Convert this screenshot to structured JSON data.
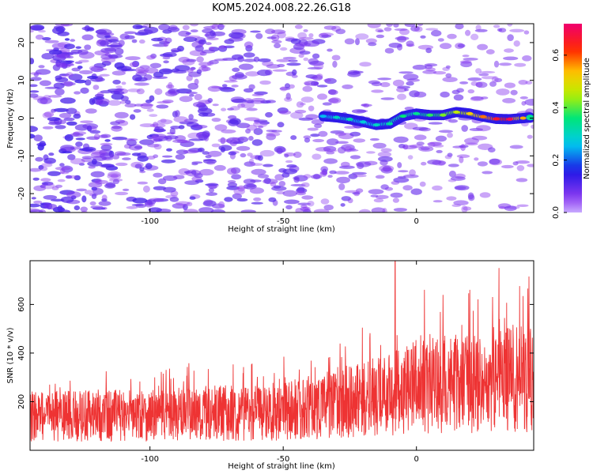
{
  "figure": {
    "title": "KOM5.2024.008.22.26.G18"
  },
  "chart_data": [
    {
      "type": "heatmap",
      "title": "KOM5.2024.008.22.26.G18",
      "xlabel": "Height of straight line (km)",
      "ylabel": "Frequency (Hz)",
      "xlim": [
        -145,
        44
      ],
      "ylim": [
        -25,
        25
      ],
      "x_ticks": [
        -100,
        -50,
        0
      ],
      "y_ticks": [
        -20,
        -10,
        0,
        10,
        20
      ],
      "colorbar": {
        "label": "Normalized spectral amplitude",
        "range": [
          0,
          0.72
        ],
        "ticks": [
          "0.0",
          "0.2",
          "0.4",
          "0.6"
        ],
        "colormap": "rainbow (violet to red)"
      },
      "ridge": {
        "description": "strong narrow band near 0 Hz from about -35 km to +43 km",
        "x": [
          -35,
          -30,
          -25,
          -20,
          -15,
          -10,
          -5,
          0,
          5,
          10,
          15,
          20,
          25,
          30,
          35,
          40,
          43
        ],
        "freq": [
          0.5,
          0.2,
          -0.3,
          -1.0,
          -1.8,
          -1.5,
          0.5,
          1.2,
          0.8,
          0.8,
          1.6,
          1.2,
          0.4,
          -0.2,
          -0.3,
          0.0,
          0.2
        ],
        "amplitude": [
          0.25,
          0.3,
          0.32,
          0.28,
          0.3,
          0.33,
          0.36,
          0.34,
          0.38,
          0.42,
          0.46,
          0.52,
          0.58,
          0.66,
          0.7,
          0.55,
          0.35
        ]
      },
      "background_noise_amplitude": [
        0.0,
        0.12
      ]
    },
    {
      "type": "line",
      "xlabel": "Height of straight line (km)",
      "ylabel": "SNR (10 * v/v)",
      "xlim": [
        -145,
        44
      ],
      "ylim": [
        0,
        780
      ],
      "x_ticks": [
        -100,
        -50,
        0
      ],
      "y_ticks": [
        200,
        400,
        600
      ],
      "color": "#ee3333",
      "trend": {
        "x": [
          -145,
          -100,
          -50,
          -10,
          0,
          44
        ],
        "mean": [
          140,
          145,
          160,
          230,
          260,
          300
        ]
      },
      "peaks": [
        {
          "x": -8,
          "y": 780
        },
        {
          "x": 31,
          "y": 750
        },
        {
          "x": 20,
          "y": 660
        },
        {
          "x": 3,
          "y": 660
        }
      ]
    }
  ]
}
